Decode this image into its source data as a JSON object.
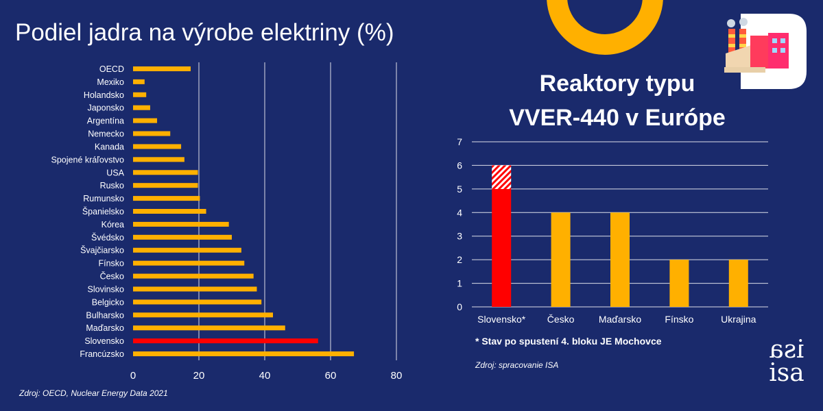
{
  "colors": {
    "background": "#1a2a6c",
    "bar": "#ffb000",
    "highlight": "#ff0000",
    "text": "#ffffff",
    "grid": "#ffffff"
  },
  "header": {
    "left_title": "Podiel jadra na výrobe elektriny (%)",
    "right_title_line1": "Reaktory typu",
    "right_title_line2": "VVER-440 v Európe"
  },
  "decorations": {
    "ring_icon": "orange-ring-icon",
    "factory_icon": "power-plant-icon"
  },
  "notes": {
    "footnote": "* Stav po spustení 4. bloku JE Mochovce",
    "source_right": "Zdroj: spracovanie  ISA",
    "source_left": "Zdroj: OECD, Nuclear Energy Data 2021"
  },
  "logo": {
    "top": "ISA",
    "bottom": "isa"
  },
  "chart_data": [
    {
      "type": "bar",
      "orientation": "horizontal",
      "title": "Podiel jadra na výrobe elektriny (%)",
      "categories": [
        "OECD",
        "Mexiko",
        "Holandsko",
        "Japonsko",
        "Argentína",
        "Nemecko",
        "Kanada",
        "Spojené kráľovstvo",
        "USA",
        "Rusko",
        "Rumunsko",
        "Španielsko",
        "Kórea",
        "Švédsko",
        "Švajčiarsko",
        "Fínsko",
        "Česko",
        "Slovinsko",
        "Belgicko",
        "Bulharsko",
        "Maďarsko",
        "Slovensko",
        "Francúzsko"
      ],
      "values": [
        17.5,
        3.5,
        4,
        5.2,
        7.3,
        11.3,
        14.6,
        15.6,
        19.7,
        19.7,
        20.3,
        22.2,
        29.1,
        30,
        32.9,
        33.8,
        36.6,
        37.6,
        39,
        42.5,
        46.2,
        56.2,
        67.1
      ],
      "highlight": [
        "Slovensko"
      ],
      "xlim": [
        0,
        80
      ],
      "xticks": [
        0,
        20,
        40,
        60,
        80
      ],
      "grid": true
    },
    {
      "type": "bar",
      "title": "Reaktory typu VVER-440 v Európe",
      "categories": [
        "Slovensko*",
        "Česko",
        "Maďarsko",
        "Fínsko",
        "Ukrajina"
      ],
      "values": [
        6,
        4,
        4,
        2,
        2
      ],
      "highlight": {
        "category": "Slovensko*",
        "solid_value": 5,
        "hatched_value": 1
      },
      "ylim": [
        0,
        7
      ],
      "yticks": [
        0,
        1,
        2,
        3,
        4,
        5,
        6,
        7
      ],
      "grid": true
    }
  ]
}
